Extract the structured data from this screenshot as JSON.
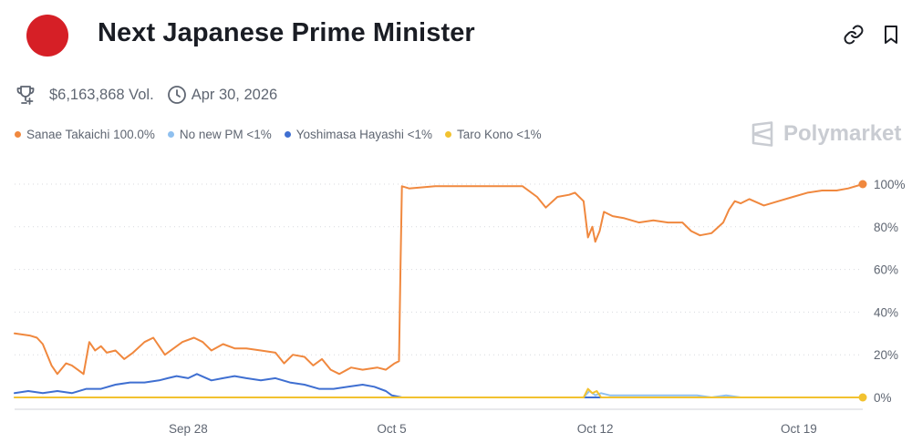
{
  "header": {
    "title": "Next Japanese Prime Minister",
    "flag_icon": "japan-flag-icon",
    "link_icon": "link-icon",
    "bookmark_icon": "bookmark-icon"
  },
  "meta": {
    "volume": "$6,163,868 Vol.",
    "end_date": "Apr 30, 2026",
    "trophy_icon": "trophy-icon",
    "clock_icon": "clock-icon"
  },
  "legend": [
    {
      "label": "Sanae Takaichi 100.0%",
      "color": "#f0883e"
    },
    {
      "label": "No new PM <1%",
      "color": "#8fc0ef"
    },
    {
      "label": "Yoshimasa Hayashi <1%",
      "color": "#3f6fd1"
    },
    {
      "label": "Taro Kono <1%",
      "color": "#f2c230"
    }
  ],
  "watermark": "Polymarket",
  "colors": {
    "takaichi": "#f0883e",
    "no_new_pm": "#8fc0ef",
    "hayashi": "#3f6fd1",
    "kono": "#f2c230",
    "text": "#1a1d24",
    "muted": "#5f6672",
    "grid": "#d7d9de"
  },
  "chart_data": {
    "type": "line",
    "x_unit": "days since Sep 22",
    "x_ticks": [
      {
        "x": 6,
        "label": "Sep 28"
      },
      {
        "x": 13,
        "label": "Oct 5"
      },
      {
        "x": 20,
        "label": "Oct 12"
      },
      {
        "x": 27,
        "label": "Oct 19"
      }
    ],
    "y_ticks": [
      {
        "y": 100,
        "label": "100%"
      },
      {
        "y": 80,
        "label": "80%"
      },
      {
        "y": 60,
        "label": "60%"
      },
      {
        "y": 40,
        "label": "40%"
      },
      {
        "y": 20,
        "label": "20%"
      },
      {
        "y": 0,
        "label": "0%"
      }
    ],
    "xlim": [
      0.03,
      29.2
    ],
    "ylim": [
      0,
      100
    ],
    "grid": true,
    "series": [
      {
        "name": "Sanae Takaichi",
        "color": "#f0883e",
        "end_marker": true,
        "points": [
          [
            0.03,
            30
          ],
          [
            0.55,
            29
          ],
          [
            0.8,
            28
          ],
          [
            1.0,
            25
          ],
          [
            1.3,
            15
          ],
          [
            1.5,
            11
          ],
          [
            1.8,
            16
          ],
          [
            2.0,
            15
          ],
          [
            2.2,
            13
          ],
          [
            2.4,
            11
          ],
          [
            2.6,
            26
          ],
          [
            2.8,
            22
          ],
          [
            3.0,
            24
          ],
          [
            3.2,
            21
          ],
          [
            3.5,
            22
          ],
          [
            3.8,
            18
          ],
          [
            4.1,
            21
          ],
          [
            4.5,
            26
          ],
          [
            4.8,
            28
          ],
          [
            5.2,
            20
          ],
          [
            5.5,
            23
          ],
          [
            5.8,
            26
          ],
          [
            6.2,
            28
          ],
          [
            6.5,
            26
          ],
          [
            6.8,
            22
          ],
          [
            7.2,
            25
          ],
          [
            7.6,
            23
          ],
          [
            8.0,
            23
          ],
          [
            8.5,
            22
          ],
          [
            9.0,
            21
          ],
          [
            9.3,
            16
          ],
          [
            9.6,
            20
          ],
          [
            10.0,
            19
          ],
          [
            10.3,
            15
          ],
          [
            10.6,
            18
          ],
          [
            10.9,
            13
          ],
          [
            11.2,
            11
          ],
          [
            11.6,
            14
          ],
          [
            12.0,
            13
          ],
          [
            12.5,
            14
          ],
          [
            12.8,
            13
          ],
          [
            13.1,
            16
          ],
          [
            13.25,
            17
          ],
          [
            13.3,
            60
          ],
          [
            13.35,
            99
          ],
          [
            13.6,
            98
          ],
          [
            14.5,
            99
          ],
          [
            15.5,
            99
          ],
          [
            16.5,
            99
          ],
          [
            17.5,
            99
          ],
          [
            18.0,
            94
          ],
          [
            18.3,
            89
          ],
          [
            18.7,
            94
          ],
          [
            19.1,
            95
          ],
          [
            19.3,
            96
          ],
          [
            19.6,
            92
          ],
          [
            19.75,
            75
          ],
          [
            19.9,
            80
          ],
          [
            20.0,
            73
          ],
          [
            20.15,
            78
          ],
          [
            20.3,
            87
          ],
          [
            20.6,
            85
          ],
          [
            21.0,
            84
          ],
          [
            21.5,
            82
          ],
          [
            22.0,
            83
          ],
          [
            22.5,
            82
          ],
          [
            23.0,
            82
          ],
          [
            23.3,
            78
          ],
          [
            23.6,
            76
          ],
          [
            24.0,
            77
          ],
          [
            24.4,
            82
          ],
          [
            24.6,
            88
          ],
          [
            24.8,
            92
          ],
          [
            25.0,
            91
          ],
          [
            25.3,
            93
          ],
          [
            25.8,
            90
          ],
          [
            26.3,
            92
          ],
          [
            26.8,
            94
          ],
          [
            27.3,
            96
          ],
          [
            27.8,
            97
          ],
          [
            28.3,
            97
          ],
          [
            28.7,
            98
          ],
          [
            29.2,
            100
          ]
        ]
      },
      {
        "name": "Yoshimasa Hayashi",
        "color": "#3f6fd1",
        "points": [
          [
            0.03,
            2
          ],
          [
            0.5,
            3
          ],
          [
            1.0,
            2
          ],
          [
            1.5,
            3
          ],
          [
            2.0,
            2
          ],
          [
            2.5,
            4
          ],
          [
            3.0,
            4
          ],
          [
            3.5,
            6
          ],
          [
            4.0,
            7
          ],
          [
            4.5,
            7
          ],
          [
            5.0,
            8
          ],
          [
            5.3,
            9
          ],
          [
            5.6,
            10
          ],
          [
            6.0,
            9
          ],
          [
            6.3,
            11
          ],
          [
            6.8,
            8
          ],
          [
            7.2,
            9
          ],
          [
            7.6,
            10
          ],
          [
            8.0,
            9
          ],
          [
            8.5,
            8
          ],
          [
            9.0,
            9
          ],
          [
            9.5,
            7
          ],
          [
            10.0,
            6
          ],
          [
            10.5,
            4
          ],
          [
            11.0,
            4
          ],
          [
            11.5,
            5
          ],
          [
            12.0,
            6
          ],
          [
            12.4,
            5
          ],
          [
            12.8,
            3
          ],
          [
            13.0,
            1
          ],
          [
            13.35,
            0
          ],
          [
            14,
            0
          ],
          [
            15,
            0
          ],
          [
            16,
            0
          ],
          [
            17,
            0
          ],
          [
            18,
            0
          ],
          [
            19,
            0
          ],
          [
            20,
            0
          ],
          [
            21,
            0
          ],
          [
            22,
            0
          ],
          [
            23,
            0
          ],
          [
            24,
            0
          ],
          [
            25,
            0
          ],
          [
            26,
            0
          ],
          [
            27,
            0
          ],
          [
            28,
            0
          ],
          [
            29.2,
            0
          ]
        ]
      },
      {
        "name": "No new PM",
        "color": "#8fc0ef",
        "points": [
          [
            0.03,
            0
          ],
          [
            2,
            0
          ],
          [
            4,
            0
          ],
          [
            6,
            0
          ],
          [
            8,
            0
          ],
          [
            10,
            0
          ],
          [
            12,
            0
          ],
          [
            13.35,
            0
          ],
          [
            15,
            0
          ],
          [
            17,
            0
          ],
          [
            19,
            0
          ],
          [
            19.6,
            0
          ],
          [
            19.8,
            3
          ],
          [
            20.0,
            1
          ],
          [
            20.2,
            2
          ],
          [
            20.5,
            1
          ],
          [
            21,
            1
          ],
          [
            22,
            1
          ],
          [
            23,
            1
          ],
          [
            23.5,
            1
          ],
          [
            24,
            0
          ],
          [
            24.5,
            1
          ],
          [
            25,
            0
          ],
          [
            26,
            0
          ],
          [
            27,
            0
          ],
          [
            28,
            0
          ],
          [
            29.2,
            0
          ]
        ]
      },
      {
        "name": "Taro Kono",
        "color": "#f2c230",
        "end_marker": true,
        "points": [
          [
            0.03,
            0
          ],
          [
            2,
            0
          ],
          [
            4,
            0
          ],
          [
            6,
            0
          ],
          [
            8,
            0
          ],
          [
            10,
            0
          ],
          [
            12,
            0
          ],
          [
            13.35,
            0
          ],
          [
            15,
            0
          ],
          [
            17,
            0
          ],
          [
            19,
            0
          ],
          [
            19.6,
            0
          ],
          [
            19.75,
            4
          ],
          [
            19.9,
            2
          ],
          [
            20.05,
            3
          ],
          [
            20.2,
            0
          ],
          [
            21,
            0
          ],
          [
            22,
            0
          ],
          [
            23,
            0
          ],
          [
            24,
            0
          ],
          [
            25,
            0
          ],
          [
            26,
            0
          ],
          [
            27,
            0
          ],
          [
            28,
            0
          ],
          [
            29.2,
            0
          ]
        ]
      }
    ]
  }
}
